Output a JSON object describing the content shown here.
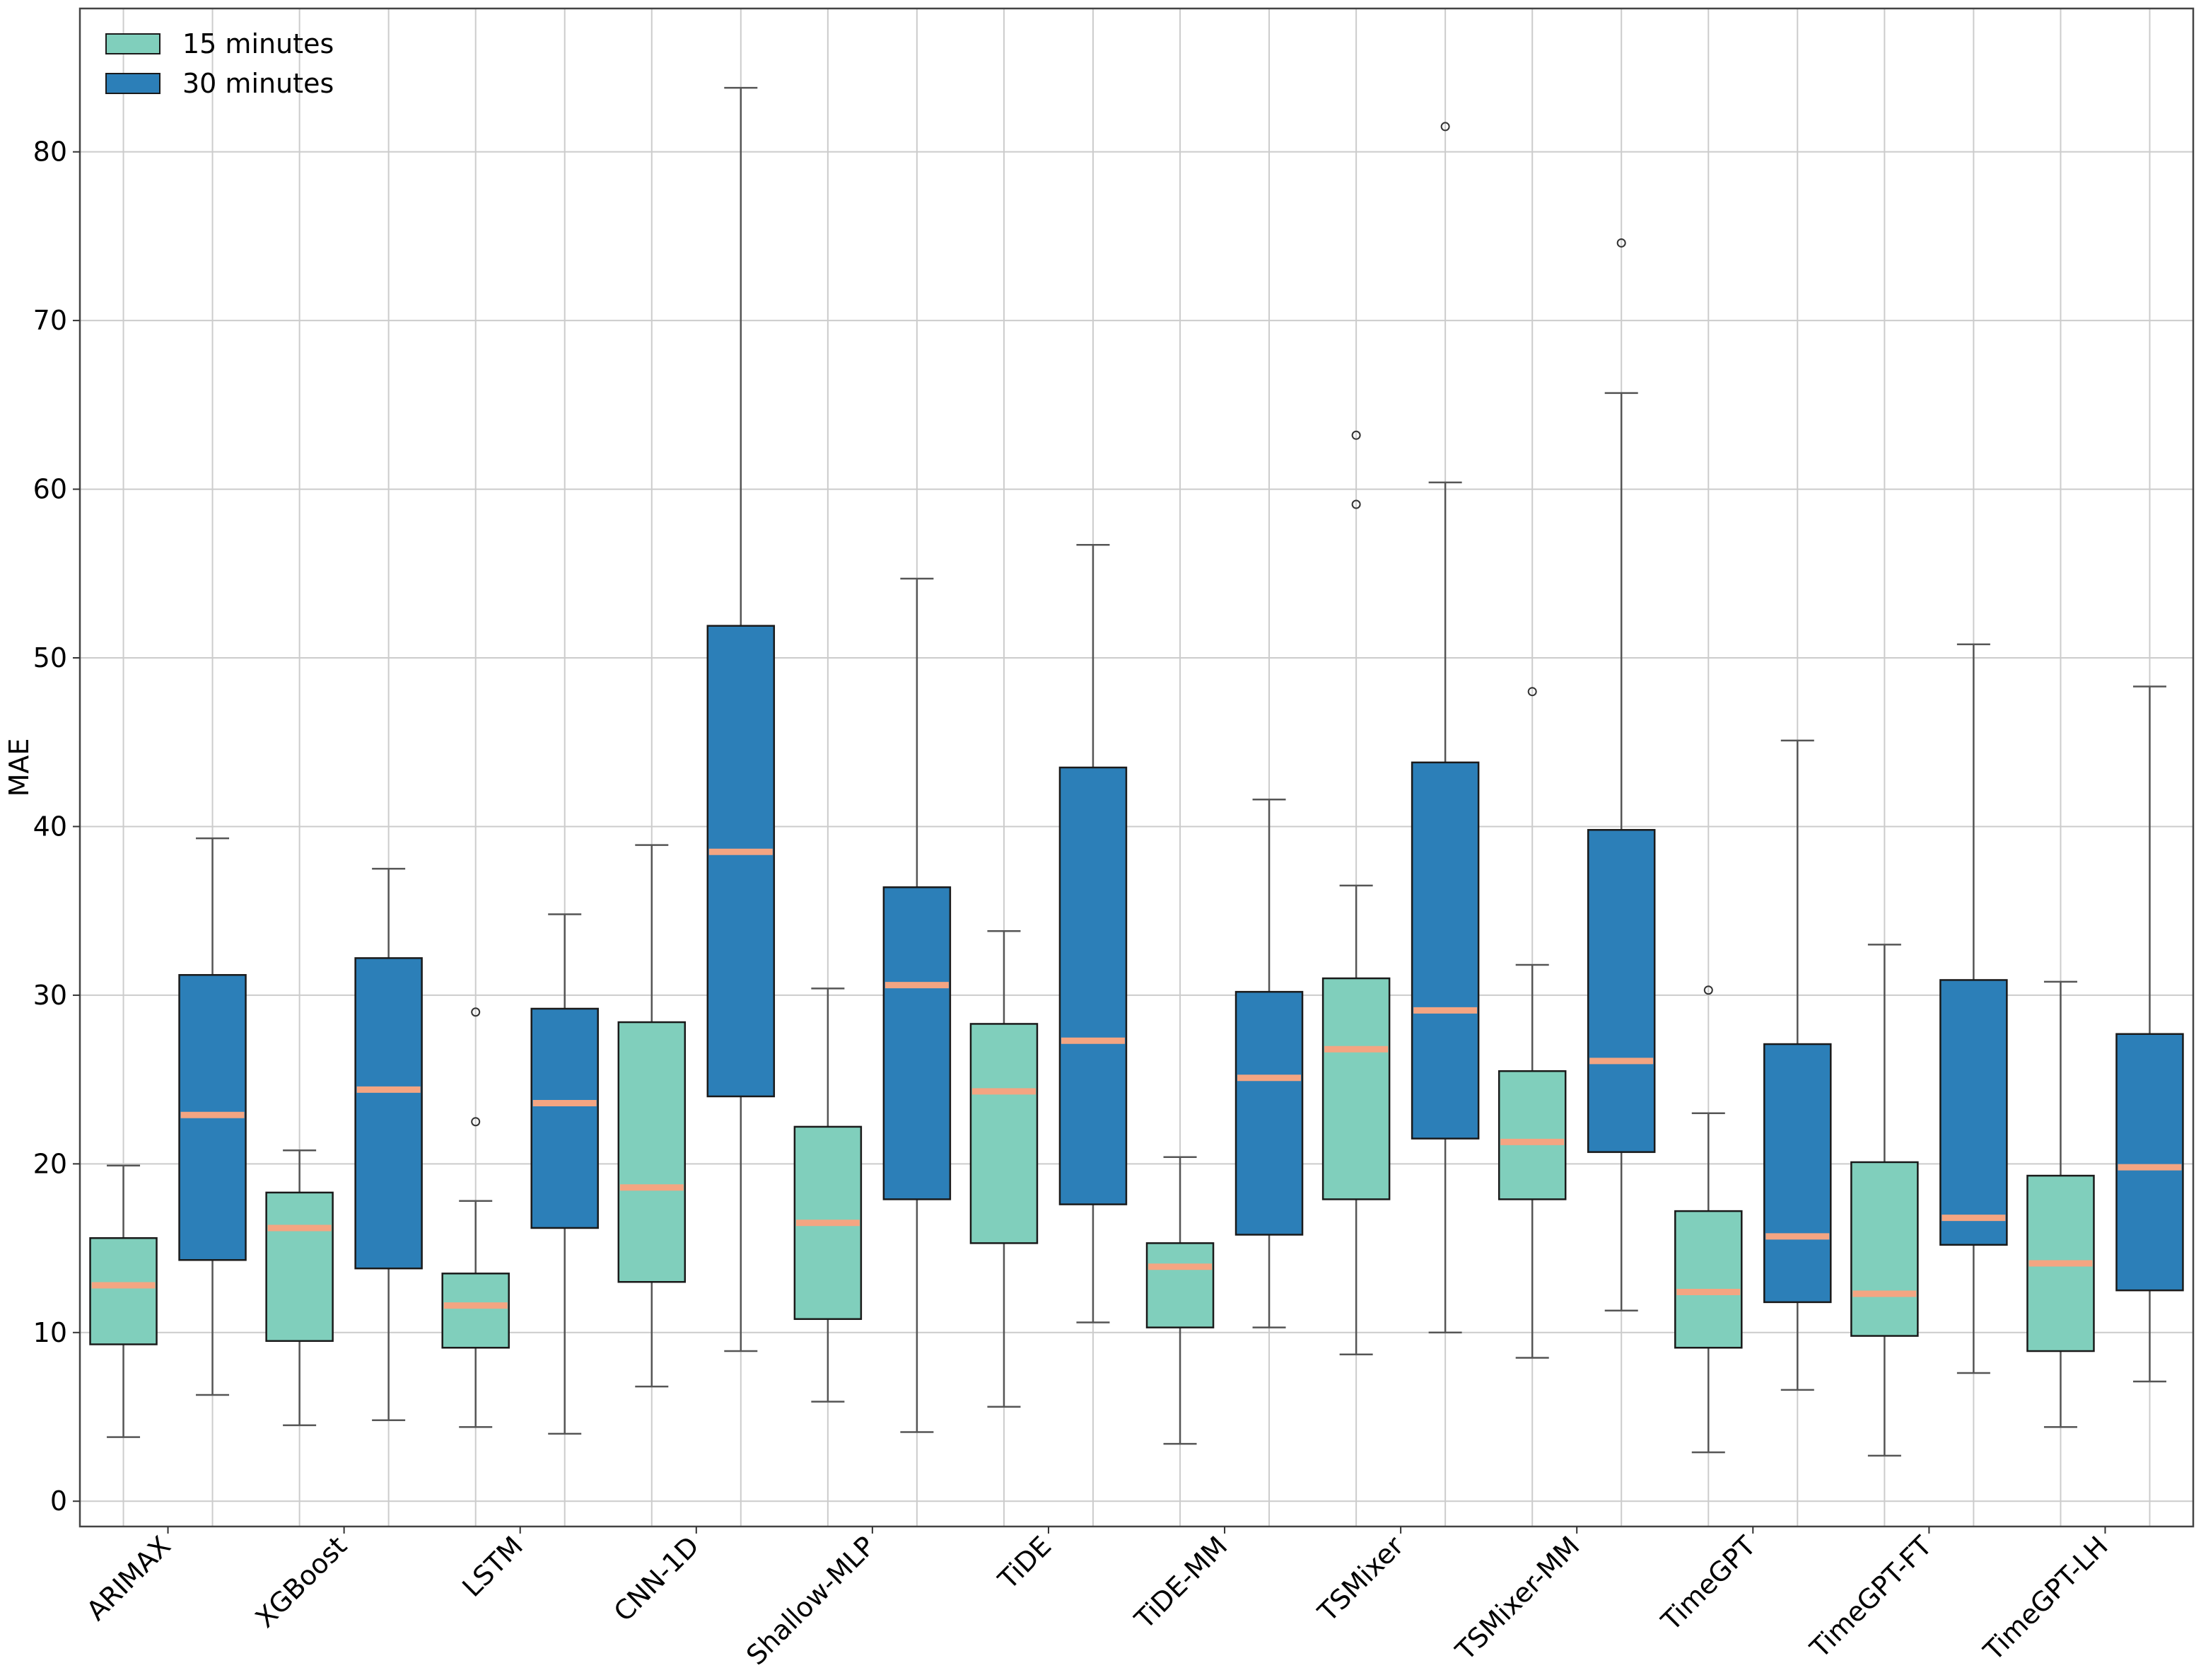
{
  "chart_data": {
    "type": "box",
    "ylabel": "MAE",
    "ylim": [
      -1.5,
      88.5
    ],
    "yticks": [
      0,
      10,
      20,
      30,
      40,
      50,
      60,
      70,
      80
    ],
    "grid": true,
    "legend_position": "top-left",
    "categories": [
      "ARIMAX",
      "XGBoost",
      "LSTM",
      "CNN-1D",
      "Shallow-MLP",
      "TiDE",
      "TiDE-MM",
      "TSMixer",
      "TSMixer-MM",
      "TimeGPT",
      "TimeGPT-FT",
      "TimeGPT-LH"
    ],
    "series": [
      {
        "name": "15 minutes",
        "color": "#80cfbc",
        "boxes": [
          {
            "whisker_low": 3.8,
            "q1": 9.3,
            "median": 12.8,
            "q3": 15.6,
            "whisker_high": 19.9,
            "outliers": []
          },
          {
            "whisker_low": 4.5,
            "q1": 9.5,
            "median": 16.2,
            "q3": 18.3,
            "whisker_high": 20.8,
            "outliers": []
          },
          {
            "whisker_low": 4.4,
            "q1": 9.1,
            "median": 11.6,
            "q3": 13.5,
            "whisker_high": 17.8,
            "outliers": [
              22.5,
              29.0
            ]
          },
          {
            "whisker_low": 6.8,
            "q1": 13.0,
            "median": 18.6,
            "q3": 28.4,
            "whisker_high": 38.9,
            "outliers": []
          },
          {
            "whisker_low": 5.9,
            "q1": 10.8,
            "median": 16.5,
            "q3": 22.2,
            "whisker_high": 30.4,
            "outliers": []
          },
          {
            "whisker_low": 5.6,
            "q1": 15.3,
            "median": 24.3,
            "q3": 28.3,
            "whisker_high": 33.8,
            "outliers": []
          },
          {
            "whisker_low": 3.4,
            "q1": 10.3,
            "median": 13.9,
            "q3": 15.3,
            "whisker_high": 20.4,
            "outliers": []
          },
          {
            "whisker_low": 8.7,
            "q1": 17.9,
            "median": 26.8,
            "q3": 31.0,
            "whisker_high": 36.5,
            "outliers": [
              59.1,
              63.2
            ]
          },
          {
            "whisker_low": 8.5,
            "q1": 17.9,
            "median": 21.3,
            "q3": 25.5,
            "whisker_high": 31.8,
            "outliers": [
              48.0
            ]
          },
          {
            "whisker_low": 2.9,
            "q1": 9.1,
            "median": 12.4,
            "q3": 17.2,
            "whisker_high": 23.0,
            "outliers": [
              30.3
            ]
          },
          {
            "whisker_low": 2.7,
            "q1": 9.8,
            "median": 12.3,
            "q3": 20.1,
            "whisker_high": 33.0,
            "outliers": []
          },
          {
            "whisker_low": 4.4,
            "q1": 8.9,
            "median": 14.1,
            "q3": 19.3,
            "whisker_high": 30.8,
            "outliers": []
          }
        ]
      },
      {
        "name": "30 minutes",
        "color": "#2c7fb8",
        "boxes": [
          {
            "whisker_low": 6.3,
            "q1": 14.3,
            "median": 22.9,
            "q3": 31.2,
            "whisker_high": 39.3,
            "outliers": []
          },
          {
            "whisker_low": 4.8,
            "q1": 13.8,
            "median": 24.4,
            "q3": 32.2,
            "whisker_high": 37.5,
            "outliers": []
          },
          {
            "whisker_low": 4.0,
            "q1": 16.2,
            "median": 23.6,
            "q3": 29.2,
            "whisker_high": 34.8,
            "outliers": []
          },
          {
            "whisker_low": 8.9,
            "q1": 24.0,
            "median": 38.5,
            "q3": 51.9,
            "whisker_high": 83.8,
            "outliers": []
          },
          {
            "whisker_low": 4.1,
            "q1": 17.9,
            "median": 30.6,
            "q3": 36.4,
            "whisker_high": 54.7,
            "outliers": []
          },
          {
            "whisker_low": 10.6,
            "q1": 17.6,
            "median": 27.3,
            "q3": 43.5,
            "whisker_high": 56.7,
            "outliers": []
          },
          {
            "whisker_low": 10.3,
            "q1": 15.8,
            "median": 25.1,
            "q3": 30.2,
            "whisker_high": 41.6,
            "outliers": []
          },
          {
            "whisker_low": 10.0,
            "q1": 21.5,
            "median": 29.1,
            "q3": 43.8,
            "whisker_high": 60.4,
            "outliers": [
              81.5
            ]
          },
          {
            "whisker_low": 11.3,
            "q1": 20.7,
            "median": 26.1,
            "q3": 39.8,
            "whisker_high": 65.7,
            "outliers": [
              74.6
            ]
          },
          {
            "whisker_low": 6.6,
            "q1": 11.8,
            "median": 15.7,
            "q3": 27.1,
            "whisker_high": 45.1,
            "outliers": []
          },
          {
            "whisker_low": 7.6,
            "q1": 15.2,
            "median": 16.8,
            "q3": 30.9,
            "whisker_high": 50.8,
            "outliers": []
          },
          {
            "whisker_low": 7.1,
            "q1": 12.5,
            "median": 19.8,
            "q3": 27.7,
            "whisker_high": 48.3,
            "outliers": []
          }
        ]
      }
    ],
    "median_color": "#f4a582",
    "box_edge_color": "#1a1a1a",
    "whisker_color": "#555555",
    "grid_color": "#cccccc"
  }
}
